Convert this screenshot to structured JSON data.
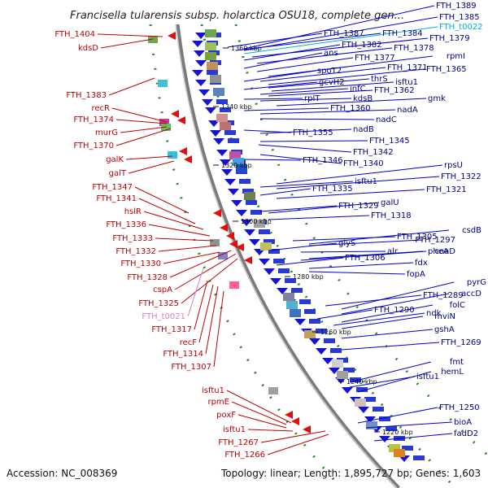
{
  "title": "Francisella tularensis subsp. holarctica OSU18, complete gen...",
  "footer": {
    "accession": "Accession: NC_008369",
    "topology": "Topology: linear; Length: 1,895,727 bp; Genes: 1,603"
  },
  "colors": {
    "left_labels": "#c00000",
    "right_labels": "#00008b",
    "trna_label": "#00b0d8",
    "pseudo_label": "#e080c0",
    "backbone": "#888888",
    "ticks": "#2a8a2a"
  },
  "scale_labels": [
    "1360 kbp",
    "1340 kbp",
    "1320 kbp",
    "1300 kbp",
    "1280 kbp",
    "1260 kbp",
    "1240 kbp",
    "1220 kbp"
  ],
  "left_labels": [
    {
      "text": "FTH_1404",
      "kind": "red"
    },
    {
      "text": "kdsD",
      "kind": "red"
    },
    {
      "text": "FTH_1383",
      "kind": "red"
    },
    {
      "text": "recR",
      "kind": "red"
    },
    {
      "text": "FTH_1374",
      "kind": "red"
    },
    {
      "text": "murG",
      "kind": "red"
    },
    {
      "text": "FTH_1370",
      "kind": "red"
    },
    {
      "text": "galK",
      "kind": "red"
    },
    {
      "text": "galT",
      "kind": "red"
    },
    {
      "text": "FTH_1347",
      "kind": "red"
    },
    {
      "text": "FTH_1341",
      "kind": "red"
    },
    {
      "text": "hslR",
      "kind": "red"
    },
    {
      "text": "FTH_1336",
      "kind": "red"
    },
    {
      "text": "FTH_1333",
      "kind": "red"
    },
    {
      "text": "FTH_1332",
      "kind": "red"
    },
    {
      "text": "FTH_1330",
      "kind": "red"
    },
    {
      "text": "FTH_1328",
      "kind": "red"
    },
    {
      "text": "cspA",
      "kind": "red"
    },
    {
      "text": "FTH_1325",
      "kind": "red"
    },
    {
      "text": "FTH_t0021",
      "kind": "pink"
    },
    {
      "text": "FTH_1317",
      "kind": "red"
    },
    {
      "text": "recF",
      "kind": "red"
    },
    {
      "text": "FTH_1314",
      "kind": "red"
    },
    {
      "text": "FTH_1307",
      "kind": "red"
    },
    {
      "text": "isftu1",
      "kind": "red"
    },
    {
      "text": "rpmE",
      "kind": "red"
    },
    {
      "text": "poxF",
      "kind": "red"
    },
    {
      "text": "isftu1",
      "kind": "red"
    },
    {
      "text": "FTH_1267",
      "kind": "red"
    },
    {
      "text": "FTH_1266",
      "kind": "red"
    }
  ],
  "right_labels": [
    {
      "text": "FTH_1389",
      "kind": "blue"
    },
    {
      "text": "FTH_1385",
      "kind": "blue"
    },
    {
      "text": "FTH_1387",
      "kind": "blue"
    },
    {
      "text": "FTH_1384",
      "kind": "blue"
    },
    {
      "text": "FTH_t0022",
      "kind": "cyan"
    },
    {
      "text": "FTH_1379",
      "kind": "blue"
    },
    {
      "text": "FTH_1382",
      "kind": "blue"
    },
    {
      "text": "FTH_1378",
      "kind": "blue"
    },
    {
      "text": "ans",
      "kind": "blue"
    },
    {
      "text": "FTH_1377",
      "kind": "blue"
    },
    {
      "text": "rpmI",
      "kind": "blue"
    },
    {
      "text": "FTH_1371",
      "kind": "blue"
    },
    {
      "text": "FTH_1365",
      "kind": "blue"
    },
    {
      "text": "spoT2",
      "kind": "blue"
    },
    {
      "text": "thrS",
      "kind": "blue"
    },
    {
      "text": "isftu1",
      "kind": "blue"
    },
    {
      "text": "gcvH2",
      "kind": "blue"
    },
    {
      "text": "infC",
      "kind": "blue"
    },
    {
      "text": "FTH_1362",
      "kind": "blue"
    },
    {
      "text": "rplT",
      "kind": "blue"
    },
    {
      "text": "kdsB",
      "kind": "blue"
    },
    {
      "text": "gmk",
      "kind": "blue"
    },
    {
      "text": "FTH_1360",
      "kind": "blue"
    },
    {
      "text": "nadA",
      "kind": "blue"
    },
    {
      "text": "nadC",
      "kind": "blue"
    },
    {
      "text": "FTH_1355",
      "kind": "blue"
    },
    {
      "text": "nadB",
      "kind": "blue"
    },
    {
      "text": "FTH_1345",
      "kind": "blue"
    },
    {
      "text": "FTH_1342",
      "kind": "blue"
    },
    {
      "text": "FTH_1346",
      "kind": "blue"
    },
    {
      "text": "FTH_1340",
      "kind": "blue"
    },
    {
      "text": "rpsU",
      "kind": "blue"
    },
    {
      "text": "FTH_1322",
      "kind": "blue"
    },
    {
      "text": "isftu1",
      "kind": "blue"
    },
    {
      "text": "FTH_1335",
      "kind": "blue"
    },
    {
      "text": "FTH_1321",
      "kind": "blue"
    },
    {
      "text": "FTH_1329",
      "kind": "blue"
    },
    {
      "text": "galU",
      "kind": "blue"
    },
    {
      "text": "FTH_1318",
      "kind": "blue"
    },
    {
      "text": "csdB",
      "kind": "blue"
    },
    {
      "text": "FTH_1305",
      "kind": "blue"
    },
    {
      "text": "FTH_1297",
      "kind": "blue"
    },
    {
      "text": "glyS",
      "kind": "blue"
    },
    {
      "text": "alr",
      "kind": "blue"
    },
    {
      "text": "pheA",
      "kind": "blue"
    },
    {
      "text": "coaD",
      "kind": "blue"
    },
    {
      "text": "FTH_1306",
      "kind": "blue"
    },
    {
      "text": "fdx",
      "kind": "blue"
    },
    {
      "text": "fopA",
      "kind": "blue"
    },
    {
      "text": "pyrG",
      "kind": "blue"
    },
    {
      "text": "FTH_1289",
      "kind": "blue"
    },
    {
      "text": "accD",
      "kind": "blue"
    },
    {
      "text": "FTH_1290",
      "kind": "blue"
    },
    {
      "text": "folC",
      "kind": "blue"
    },
    {
      "text": "ndk",
      "kind": "blue"
    },
    {
      "text": "mviN",
      "kind": "blue"
    },
    {
      "text": "gshA",
      "kind": "blue"
    },
    {
      "text": "FTH_1269",
      "kind": "blue"
    },
    {
      "text": "fmt",
      "kind": "blue"
    },
    {
      "text": "isftu1",
      "kind": "blue"
    },
    {
      "text": "hemL",
      "kind": "blue"
    },
    {
      "text": "FTH_1250",
      "kind": "blue"
    },
    {
      "text": "bioA",
      "kind": "blue"
    },
    {
      "text": "fadD2",
      "kind": "blue"
    }
  ]
}
